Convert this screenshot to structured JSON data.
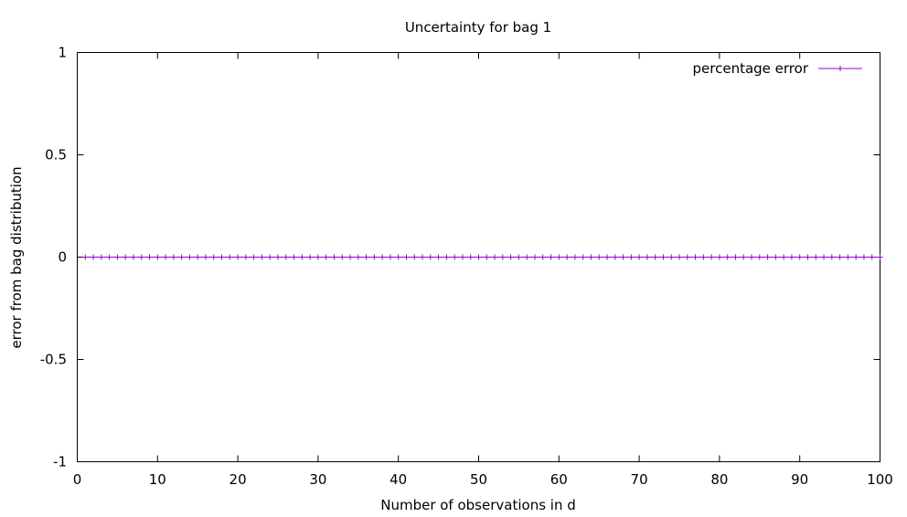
{
  "chart_data": {
    "type": "line",
    "title": "Uncertainty for bag 1",
    "xlabel": "Number of observations in d",
    "ylabel": "error from bag distribution",
    "xlim": [
      0,
      100
    ],
    "ylim": [
      -1,
      1
    ],
    "xticks": [
      0,
      10,
      20,
      30,
      40,
      50,
      60,
      70,
      80,
      90,
      100
    ],
    "yticks": [
      -1,
      -0.5,
      0,
      0.5,
      1
    ],
    "xtick_labels": [
      "0",
      "10",
      "20",
      "30",
      "40",
      "50",
      "60",
      "70",
      "80",
      "90",
      "100"
    ],
    "ytick_labels": [
      "-1",
      "-0.5",
      "0",
      "0.5",
      "1"
    ],
    "grid": false,
    "legend_position": "top-right",
    "series": [
      {
        "name": "percentage error",
        "color": "#9400d3",
        "marker": "plus",
        "x": [
          1,
          2,
          3,
          4,
          5,
          6,
          7,
          8,
          9,
          10,
          11,
          12,
          13,
          14,
          15,
          16,
          17,
          18,
          19,
          20,
          21,
          22,
          23,
          24,
          25,
          26,
          27,
          28,
          29,
          30,
          31,
          32,
          33,
          34,
          35,
          36,
          37,
          38,
          39,
          40,
          41,
          42,
          43,
          44,
          45,
          46,
          47,
          48,
          49,
          50,
          51,
          52,
          53,
          54,
          55,
          56,
          57,
          58,
          59,
          60,
          61,
          62,
          63,
          64,
          65,
          66,
          67,
          68,
          69,
          70,
          71,
          72,
          73,
          74,
          75,
          76,
          77,
          78,
          79,
          80,
          81,
          82,
          83,
          84,
          85,
          86,
          87,
          88,
          89,
          90,
          91,
          92,
          93,
          94,
          95,
          96,
          97,
          98,
          99,
          100
        ],
        "y": [
          0,
          0,
          0,
          0,
          0,
          0,
          0,
          0,
          0,
          0,
          0,
          0,
          0,
          0,
          0,
          0,
          0,
          0,
          0,
          0,
          0,
          0,
          0,
          0,
          0,
          0,
          0,
          0,
          0,
          0,
          0,
          0,
          0,
          0,
          0,
          0,
          0,
          0,
          0,
          0,
          0,
          0,
          0,
          0,
          0,
          0,
          0,
          0,
          0,
          0,
          0,
          0,
          0,
          0,
          0,
          0,
          0,
          0,
          0,
          0,
          0,
          0,
          0,
          0,
          0,
          0,
          0,
          0,
          0,
          0,
          0,
          0,
          0,
          0,
          0,
          0,
          0,
          0,
          0,
          0,
          0,
          0,
          0,
          0,
          0,
          0,
          0,
          0,
          0,
          0,
          0,
          0,
          0,
          0,
          0,
          0,
          0,
          0,
          0,
          0
        ]
      }
    ]
  }
}
